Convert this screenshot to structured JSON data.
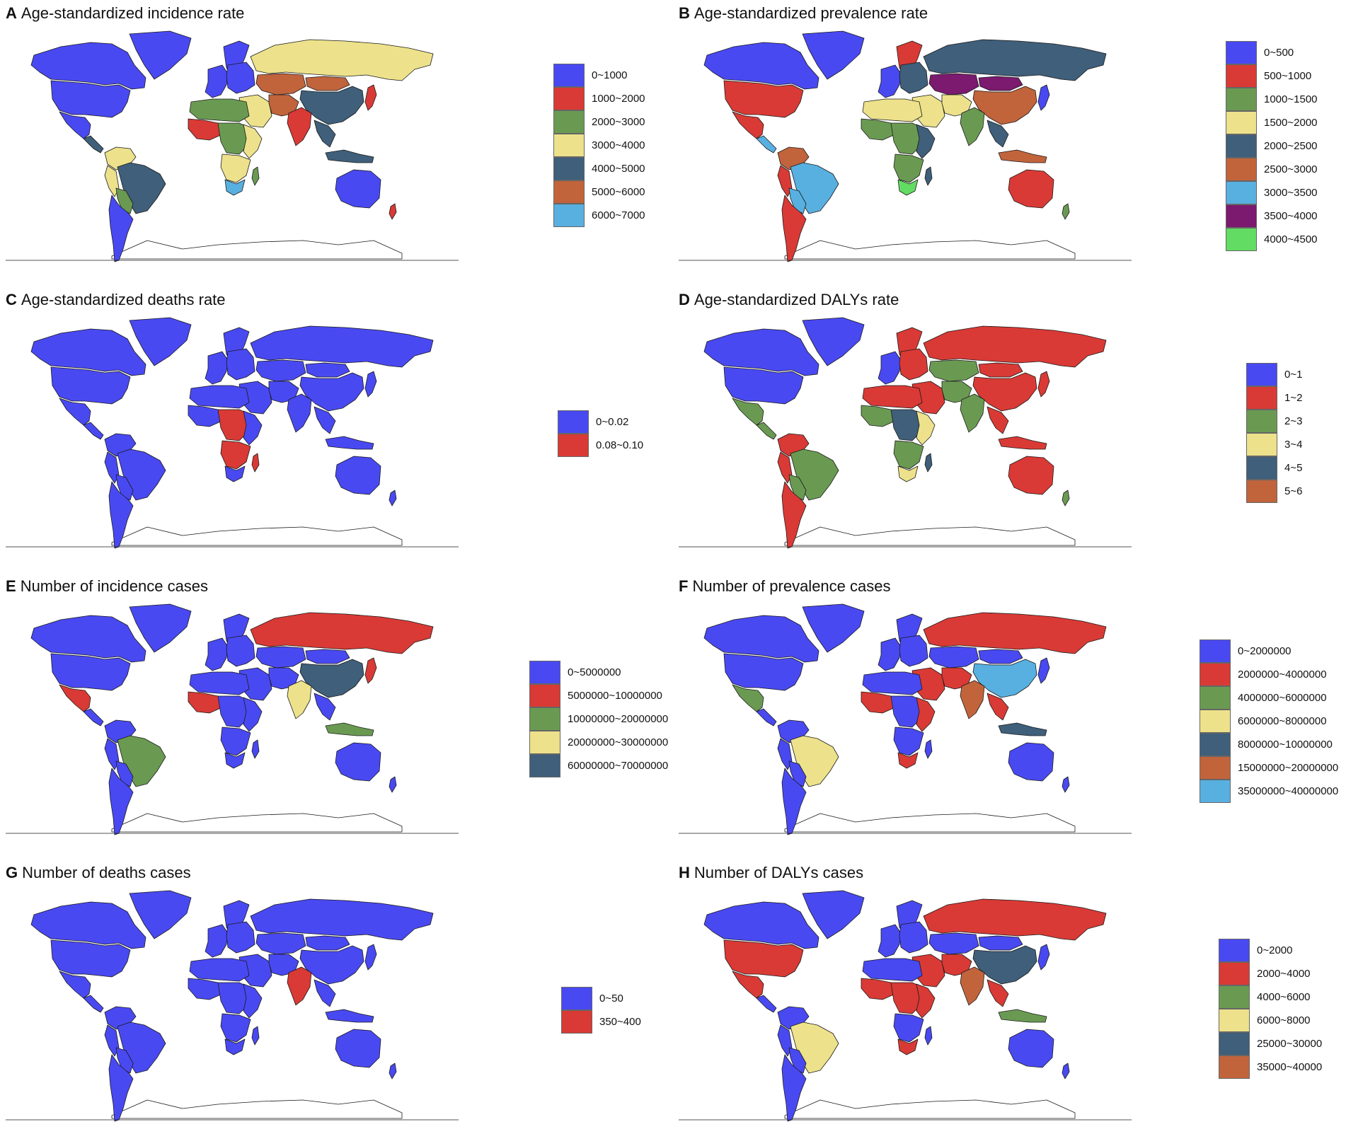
{
  "colors": {
    "blue": "#4949f2",
    "red": "#d93a35",
    "green": "#6a9a52",
    "yellow": "#ede28b",
    "slate": "#3f5f7a",
    "brown": "#c1643c",
    "sky": "#58b0e0",
    "purple": "#7b1a6e",
    "lime": "#62dc62",
    "border": "#1a1a1a",
    "ocean": "#ffffff"
  },
  "panels": [
    {
      "letter": "A",
      "title": "Age-standardized incidence rate",
      "legend": [
        {
          "label": "0~1000",
          "color": "#4949f2"
        },
        {
          "label": "1000~2000",
          "color": "#d93a35"
        },
        {
          "label": "2000~3000",
          "color": "#6a9a52"
        },
        {
          "label": "3000~4000",
          "color": "#ede28b"
        },
        {
          "label": "4000~5000",
          "color": "#3f5f7a"
        },
        {
          "label": "5000~6000",
          "color": "#c1643c"
        },
        {
          "label": "6000~7000",
          "color": "#58b0e0"
        }
      ],
      "regions": {
        "canada": "#4949f2",
        "greenland": "#4949f2",
        "usa": "#4949f2",
        "mexico": "#4949f2",
        "central_america": "#3f5f7a",
        "colombia_venezuela": "#ede28b",
        "peru": "#ede28b",
        "brazil": "#3f5f7a",
        "bolivia_paraguay": "#6a9a52",
        "argentina_chile": "#4949f2",
        "scandinavia": "#4949f2",
        "western_europe": "#4949f2",
        "eastern_europe": "#4949f2",
        "russia": "#ede28b",
        "kazakhstan": "#c1643c",
        "mongolia": "#c1643c",
        "china": "#3f5f7a",
        "japan": "#d93a35",
        "middle_east": "#ede28b",
        "iran_afghan": "#c1643c",
        "india": "#d93a35",
        "southeast_asia": "#3f5f7a",
        "indonesia": "#3f5f7a",
        "north_africa": "#6a9a52",
        "west_africa": "#d93a35",
        "central_africa": "#6a9a52",
        "east_africa": "#ede28b",
        "southern_africa": "#ede28b",
        "south_africa": "#58b0e0",
        "madagascar": "#6a9a52",
        "australia": "#4949f2",
        "new_zealand": "#d93a35",
        "antarctica": "#ffffff"
      }
    },
    {
      "letter": "B",
      "title": "Age-standardized prevalence rate",
      "legend": [
        {
          "label": "0~500",
          "color": "#4949f2"
        },
        {
          "label": "500~1000",
          "color": "#d93a35"
        },
        {
          "label": "1000~1500",
          "color": "#6a9a52"
        },
        {
          "label": "1500~2000",
          "color": "#ede28b"
        },
        {
          "label": "2000~2500",
          "color": "#3f5f7a"
        },
        {
          "label": "2500~3000",
          "color": "#c1643c"
        },
        {
          "label": "3000~3500",
          "color": "#58b0e0"
        },
        {
          "label": "3500~4000",
          "color": "#7b1a6e"
        },
        {
          "label": "4000~4500",
          "color": "#62dc62"
        }
      ],
      "regions": {
        "canada": "#4949f2",
        "greenland": "#4949f2",
        "usa": "#d93a35",
        "mexico": "#d93a35",
        "central_america": "#58b0e0",
        "colombia_venezuela": "#c1643c",
        "peru": "#d93a35",
        "brazil": "#58b0e0",
        "bolivia_paraguay": "#58b0e0",
        "argentina_chile": "#d93a35",
        "scandinavia": "#d93a35",
        "western_europe": "#4949f2",
        "eastern_europe": "#3f5f7a",
        "russia": "#3f5f7a",
        "kazakhstan": "#7b1a6e",
        "mongolia": "#7b1a6e",
        "china": "#c1643c",
        "japan": "#4949f2",
        "middle_east": "#ede28b",
        "iran_afghan": "#ede28b",
        "india": "#6a9a52",
        "southeast_asia": "#3f5f7a",
        "indonesia": "#c1643c",
        "north_africa": "#ede28b",
        "west_africa": "#6a9a52",
        "central_africa": "#6a9a52",
        "east_africa": "#3f5f7a",
        "southern_africa": "#6a9a52",
        "south_africa": "#62dc62",
        "madagascar": "#3f5f7a",
        "australia": "#d93a35",
        "new_zealand": "#6a9a52",
        "antarctica": "#ffffff"
      }
    },
    {
      "letter": "C",
      "title": "Age-standardized deaths rate",
      "legend": [
        {
          "label": "0~0.02",
          "color": "#4949f2"
        },
        {
          "label": "0.08~0.10",
          "color": "#d93a35"
        }
      ],
      "regions": {
        "canada": "#4949f2",
        "greenland": "#4949f2",
        "usa": "#4949f2",
        "mexico": "#4949f2",
        "central_america": "#4949f2",
        "colombia_venezuela": "#4949f2",
        "peru": "#4949f2",
        "brazil": "#4949f2",
        "bolivia_paraguay": "#4949f2",
        "argentina_chile": "#4949f2",
        "scandinavia": "#4949f2",
        "western_europe": "#4949f2",
        "eastern_europe": "#4949f2",
        "russia": "#4949f2",
        "kazakhstan": "#4949f2",
        "mongolia": "#4949f2",
        "china": "#4949f2",
        "japan": "#4949f2",
        "middle_east": "#4949f2",
        "iran_afghan": "#4949f2",
        "india": "#4949f2",
        "southeast_asia": "#4949f2",
        "indonesia": "#4949f2",
        "north_africa": "#4949f2",
        "west_africa": "#4949f2",
        "central_africa": "#d93a35",
        "east_africa": "#4949f2",
        "southern_africa": "#d93a35",
        "south_africa": "#4949f2",
        "madagascar": "#d93a35",
        "australia": "#4949f2",
        "new_zealand": "#4949f2",
        "antarctica": "#ffffff"
      }
    },
    {
      "letter": "D",
      "title": "Age-standardized DALYs rate",
      "legend": [
        {
          "label": "0~1",
          "color": "#4949f2"
        },
        {
          "label": "1~2",
          "color": "#d93a35"
        },
        {
          "label": "2~3",
          "color": "#6a9a52"
        },
        {
          "label": "3~4",
          "color": "#ede28b"
        },
        {
          "label": "4~5",
          "color": "#3f5f7a"
        },
        {
          "label": "5~6",
          "color": "#c1643c"
        }
      ],
      "regions": {
        "canada": "#4949f2",
        "greenland": "#4949f2",
        "usa": "#4949f2",
        "mexico": "#6a9a52",
        "central_america": "#6a9a52",
        "colombia_venezuela": "#d93a35",
        "peru": "#d93a35",
        "brazil": "#6a9a52",
        "bolivia_paraguay": "#6a9a52",
        "argentina_chile": "#d93a35",
        "scandinavia": "#d93a35",
        "western_europe": "#4949f2",
        "eastern_europe": "#d93a35",
        "russia": "#d93a35",
        "kazakhstan": "#6a9a52",
        "mongolia": "#d93a35",
        "china": "#d93a35",
        "japan": "#d93a35",
        "middle_east": "#d93a35",
        "iran_afghan": "#6a9a52",
        "india": "#6a9a52",
        "southeast_asia": "#d93a35",
        "indonesia": "#d93a35",
        "north_africa": "#d93a35",
        "west_africa": "#6a9a52",
        "central_africa": "#3f5f7a",
        "east_africa": "#ede28b",
        "southern_africa": "#6a9a52",
        "south_africa": "#ede28b",
        "madagascar": "#3f5f7a",
        "australia": "#d93a35",
        "new_zealand": "#6a9a52",
        "antarctica": "#ffffff"
      }
    },
    {
      "letter": "E",
      "title": "Number of incidence cases",
      "legend": [
        {
          "label": "0~5000000",
          "color": "#4949f2"
        },
        {
          "label": "5000000~10000000",
          "color": "#d93a35"
        },
        {
          "label": "10000000~20000000",
          "color": "#6a9a52"
        },
        {
          "label": "20000000~30000000",
          "color": "#ede28b"
        },
        {
          "label": "60000000~70000000",
          "color": "#3f5f7a"
        }
      ],
      "regions": {
        "canada": "#4949f2",
        "greenland": "#4949f2",
        "usa": "#4949f2",
        "mexico": "#d93a35",
        "central_america": "#4949f2",
        "colombia_venezuela": "#4949f2",
        "peru": "#4949f2",
        "brazil": "#6a9a52",
        "bolivia_paraguay": "#4949f2",
        "argentina_chile": "#4949f2",
        "scandinavia": "#4949f2",
        "western_europe": "#4949f2",
        "eastern_europe": "#4949f2",
        "russia": "#d93a35",
        "kazakhstan": "#4949f2",
        "mongolia": "#4949f2",
        "china": "#3f5f7a",
        "japan": "#d93a35",
        "middle_east": "#4949f2",
        "iran_afghan": "#4949f2",
        "india": "#ede28b",
        "southeast_asia": "#4949f2",
        "indonesia": "#6a9a52",
        "north_africa": "#4949f2",
        "west_africa": "#d93a35",
        "central_africa": "#4949f2",
        "east_africa": "#4949f2",
        "southern_africa": "#4949f2",
        "south_africa": "#4949f2",
        "madagascar": "#4949f2",
        "australia": "#4949f2",
        "new_zealand": "#4949f2",
        "antarctica": "#ffffff"
      }
    },
    {
      "letter": "F",
      "title": "Number of prevalence cases",
      "legend": [
        {
          "label": "0~2000000",
          "color": "#4949f2"
        },
        {
          "label": "2000000~4000000",
          "color": "#d93a35"
        },
        {
          "label": "4000000~6000000",
          "color": "#6a9a52"
        },
        {
          "label": "6000000~8000000",
          "color": "#ede28b"
        },
        {
          "label": "8000000~10000000",
          "color": "#3f5f7a"
        },
        {
          "label": "15000000~20000000",
          "color": "#c1643c"
        },
        {
          "label": "35000000~40000000",
          "color": "#58b0e0"
        }
      ],
      "regions": {
        "canada": "#4949f2",
        "greenland": "#4949f2",
        "usa": "#4949f2",
        "mexico": "#6a9a52",
        "central_america": "#4949f2",
        "colombia_venezuela": "#4949f2",
        "peru": "#4949f2",
        "brazil": "#ede28b",
        "bolivia_paraguay": "#4949f2",
        "argentina_chile": "#4949f2",
        "scandinavia": "#4949f2",
        "western_europe": "#4949f2",
        "eastern_europe": "#4949f2",
        "russia": "#d93a35",
        "kazakhstan": "#4949f2",
        "mongolia": "#4949f2",
        "china": "#58b0e0",
        "japan": "#4949f2",
        "middle_east": "#d93a35",
        "iran_afghan": "#d93a35",
        "india": "#c1643c",
        "southeast_asia": "#d93a35",
        "indonesia": "#3f5f7a",
        "north_africa": "#4949f2",
        "west_africa": "#d93a35",
        "central_africa": "#4949f2",
        "east_africa": "#d93a35",
        "southern_africa": "#4949f2",
        "south_africa": "#d93a35",
        "madagascar": "#4949f2",
        "australia": "#4949f2",
        "new_zealand": "#4949f2",
        "antarctica": "#ffffff"
      }
    },
    {
      "letter": "G",
      "title": "Number of deaths cases",
      "legend": [
        {
          "label": "0~50",
          "color": "#4949f2"
        },
        {
          "label": "350~400",
          "color": "#d93a35"
        }
      ],
      "regions": {
        "canada": "#4949f2",
        "greenland": "#4949f2",
        "usa": "#4949f2",
        "mexico": "#4949f2",
        "central_america": "#4949f2",
        "colombia_venezuela": "#4949f2",
        "peru": "#4949f2",
        "brazil": "#4949f2",
        "bolivia_paraguay": "#4949f2",
        "argentina_chile": "#4949f2",
        "scandinavia": "#4949f2",
        "western_europe": "#4949f2",
        "eastern_europe": "#4949f2",
        "russia": "#4949f2",
        "kazakhstan": "#4949f2",
        "mongolia": "#4949f2",
        "china": "#4949f2",
        "japan": "#4949f2",
        "middle_east": "#4949f2",
        "iran_afghan": "#4949f2",
        "india": "#d93a35",
        "southeast_asia": "#4949f2",
        "indonesia": "#4949f2",
        "north_africa": "#4949f2",
        "west_africa": "#4949f2",
        "central_africa": "#4949f2",
        "east_africa": "#4949f2",
        "southern_africa": "#4949f2",
        "south_africa": "#4949f2",
        "madagascar": "#4949f2",
        "australia": "#4949f2",
        "new_zealand": "#4949f2",
        "antarctica": "#ffffff"
      }
    },
    {
      "letter": "H",
      "title": "Number of DALYs cases",
      "legend": [
        {
          "label": "0~2000",
          "color": "#4949f2"
        },
        {
          "label": "2000~4000",
          "color": "#d93a35"
        },
        {
          "label": "4000~6000",
          "color": "#6a9a52"
        },
        {
          "label": "6000~8000",
          "color": "#ede28b"
        },
        {
          "label": "25000~30000",
          "color": "#3f5f7a"
        },
        {
          "label": "35000~40000",
          "color": "#c1643c"
        }
      ],
      "regions": {
        "canada": "#4949f2",
        "greenland": "#4949f2",
        "usa": "#d93a35",
        "mexico": "#d93a35",
        "central_america": "#4949f2",
        "colombia_venezuela": "#4949f2",
        "peru": "#4949f2",
        "brazil": "#ede28b",
        "bolivia_paraguay": "#4949f2",
        "argentina_chile": "#4949f2",
        "scandinavia": "#4949f2",
        "western_europe": "#4949f2",
        "eastern_europe": "#4949f2",
        "russia": "#d93a35",
        "kazakhstan": "#4949f2",
        "mongolia": "#4949f2",
        "china": "#3f5f7a",
        "japan": "#4949f2",
        "middle_east": "#d93a35",
        "iran_afghan": "#d93a35",
        "india": "#c1643c",
        "southeast_asia": "#d93a35",
        "indonesia": "#6a9a52",
        "north_africa": "#4949f2",
        "west_africa": "#d93a35",
        "central_africa": "#d93a35",
        "east_africa": "#d93a35",
        "southern_africa": "#4949f2",
        "south_africa": "#d93a35",
        "madagascar": "#4949f2",
        "australia": "#4949f2",
        "new_zealand": "#4949f2",
        "antarctica": "#ffffff"
      }
    }
  ]
}
